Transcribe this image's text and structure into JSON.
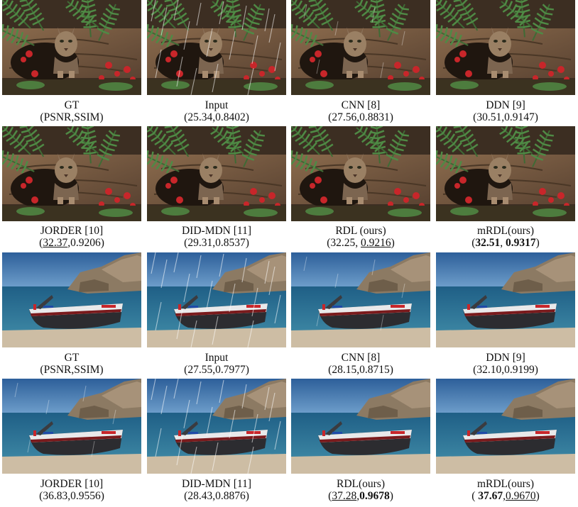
{
  "figure": {
    "rows": [
      {
        "scene": "cat-and-ferns",
        "cells": [
          {
            "method": "GT",
            "rain": "none",
            "metrics": {
              "open": "(",
              "psnr": "PSNR",
              "sep": ",",
              "ssim": "SSIM",
              "close": ")"
            }
          },
          {
            "method": "Input",
            "rain": "heavy",
            "metrics": {
              "open": "(",
              "psnr": "25.34",
              "sep": ",",
              "ssim": "0.8402",
              "close": ")"
            }
          },
          {
            "method": "CNN [8]",
            "rain": "light",
            "metrics": {
              "open": "(",
              "psnr": "27.56",
              "sep": ",",
              "ssim": "0.8831",
              "close": ")"
            }
          },
          {
            "method": "DDN [9]",
            "rain": "none",
            "metrics": {
              "open": "(",
              "psnr": "30.51",
              "sep": ",",
              "ssim": "0.9147",
              "close": ")"
            }
          }
        ]
      },
      {
        "scene": "cat-and-ferns",
        "cells": [
          {
            "method": "JORDER [10]",
            "rain": "none",
            "metrics": {
              "open": "(",
              "psnr": "32.37",
              "sep": ",",
              "ssim": "0.9206",
              "close": ")"
            }
          },
          {
            "method": "DID-MDN [11]",
            "rain": "none",
            "metrics": {
              "open": "(",
              "psnr": "29.31",
              "sep": ",",
              "ssim": "0.8537",
              "close": ")"
            }
          },
          {
            "method": "RDL (ours)",
            "rain": "none",
            "metrics": {
              "open": "(",
              "psnr": "32.25",
              "sep": ", ",
              "ssim": "0.9216",
              "close": ")"
            }
          },
          {
            "method": "mRDL(ours)",
            "rain": "none",
            "metrics": {
              "open": "(",
              "psnr": "32.51",
              "sep": ", ",
              "ssim": "0.9317",
              "close": ")"
            }
          }
        ]
      },
      {
        "scene": "boat-on-beach",
        "cells": [
          {
            "method": "GT",
            "rain": "none",
            "metrics": {
              "open": "(",
              "psnr": "PSNR",
              "sep": ",",
              "ssim": "SSIM",
              "close": ")"
            }
          },
          {
            "method": "Input",
            "rain": "heavy",
            "metrics": {
              "open": "(",
              "psnr": "27.55",
              "sep": ",",
              "ssim": "0.7977",
              "close": ")"
            }
          },
          {
            "method": "CNN [8]",
            "rain": "light",
            "metrics": {
              "open": "(",
              "psnr": "28.15",
              "sep": ",",
              "ssim": "0.8715",
              "close": ")"
            }
          },
          {
            "method": "DDN [9]",
            "rain": "none",
            "metrics": {
              "open": "(",
              "psnr": "32.10",
              "sep": ",",
              "ssim": "0.9199",
              "close": ")"
            }
          }
        ]
      },
      {
        "scene": "boat-on-beach",
        "cells": [
          {
            "method": "JORDER [10]",
            "rain": "light",
            "metrics": {
              "open": "(",
              "psnr": "36.83",
              "sep": ",",
              "ssim": "0.9556",
              "close": ")"
            }
          },
          {
            "method": "DID-MDN [11]",
            "rain": "heavy",
            "metrics": {
              "open": "(",
              "psnr": "28.43",
              "sep": ",",
              "ssim": "0.8876",
              "close": ")"
            }
          },
          {
            "method": "RDL(ours)",
            "rain": "none",
            "metrics": {
              "open": "(",
              "psnr": "37.28",
              "sep": ",",
              "ssim": "0.9678",
              "close": ")"
            }
          },
          {
            "method": "mRDL(ours)",
            "rain": "none",
            "metrics": {
              "open": "( ",
              "psnr": "37.67",
              "sep": ",",
              "ssim": "0.9670",
              "close": ")"
            }
          }
        ]
      }
    ]
  }
}
